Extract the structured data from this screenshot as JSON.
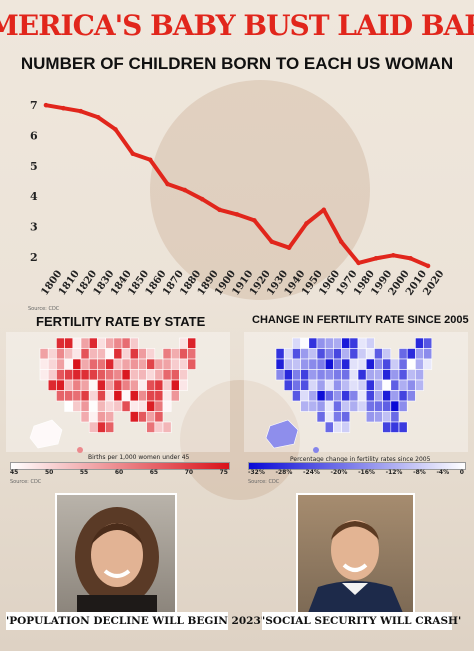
{
  "headline": "AMERICA'S BABY BUST LAID BARE",
  "chart_data": [
    {
      "type": "line",
      "title": "NUMBER OF CHILDREN BORN TO EACH US WOMAN",
      "x": [
        1800,
        1810,
        1820,
        1830,
        1840,
        1850,
        1860,
        1870,
        1880,
        1890,
        1900,
        1910,
        1920,
        1930,
        1940,
        1950,
        1960,
        1970,
        1980,
        1990,
        2000,
        2010,
        2020
      ],
      "values": [
        7.0,
        6.9,
        6.8,
        6.6,
        6.2,
        5.4,
        5.2,
        4.4,
        4.2,
        3.9,
        3.55,
        3.4,
        3.2,
        2.5,
        2.3,
        3.1,
        3.55,
        2.5,
        1.8,
        1.95,
        2.05,
        1.95,
        1.7
      ],
      "ylim": [
        1.5,
        7.5
      ],
      "yticks": [
        "7",
        "6",
        "5",
        "4",
        "3",
        "2"
      ],
      "color": "#e1261c",
      "source": "Source: CDC"
    },
    {
      "type": "map",
      "title": "FERTILITY RATE BY STATE",
      "legend_caption": "Births per 1,000 women under 45",
      "legend_ticks": [
        "45",
        "50",
        "55",
        "60",
        "65",
        "70",
        "75"
      ],
      "color_low": "#ffffff",
      "color_high": "#d9121a",
      "source": "Source: CDC"
    },
    {
      "type": "map",
      "title": "CHANGE IN FERTILITY RATE SINCE 2005",
      "legend_caption": "Percentage change in fertility rates since 2005",
      "legend_ticks": [
        "-32%",
        "-28%",
        "-24%",
        "-20%",
        "-16%",
        "-12%",
        "-8%",
        "-4%",
        "0"
      ],
      "color_low": "#0a0ad6",
      "color_high": "#ffffff",
      "source": "Source: CDC"
    }
  ],
  "quotes": {
    "left": "'POPULATION DECLINE WILL BEGIN 2023'",
    "right": "'SOCIAL SECURITY WILL CRASH'"
  }
}
